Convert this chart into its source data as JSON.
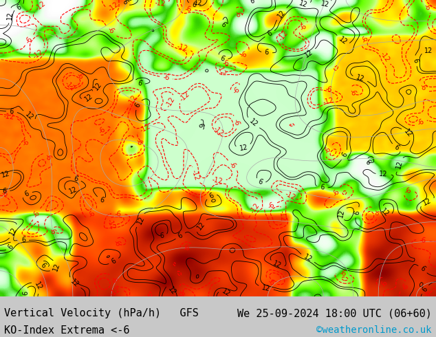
{
  "title_left_line1": "Vertical Velocity (hPa/h)   GFS",
  "title_left_line2": "KO-Index Extrema <-6",
  "title_right_line1": "We 25-09-2024 18:00 UTC (06+60)",
  "title_right_line2": "©weatheronline.co.uk",
  "title_right_line2_color": "#0099cc",
  "bg_color": "#e8e8e8",
  "text_color": "#000000",
  "font_size_main": 11,
  "font_size_credit": 10,
  "figwidth": 6.34,
  "figheight": 4.9,
  "dpi": 100,
  "map_bg": "#d0d0d0",
  "colorbar_colors": [
    "#8b0000",
    "#cc2200",
    "#ff4400",
    "#ff8800",
    "#ffcc00",
    "#ffff00",
    "#ccff00",
    "#99ff00",
    "#66ff00",
    "#33ff00",
    "#00ff00",
    "#00ff33",
    "#ccffcc",
    "#ffffff",
    "#e0ffe0",
    "#ccffcc"
  ],
  "contour_neg_color": "#ff0000",
  "contour_pos_color": "#000000",
  "contour_gray_color": "#888888"
}
